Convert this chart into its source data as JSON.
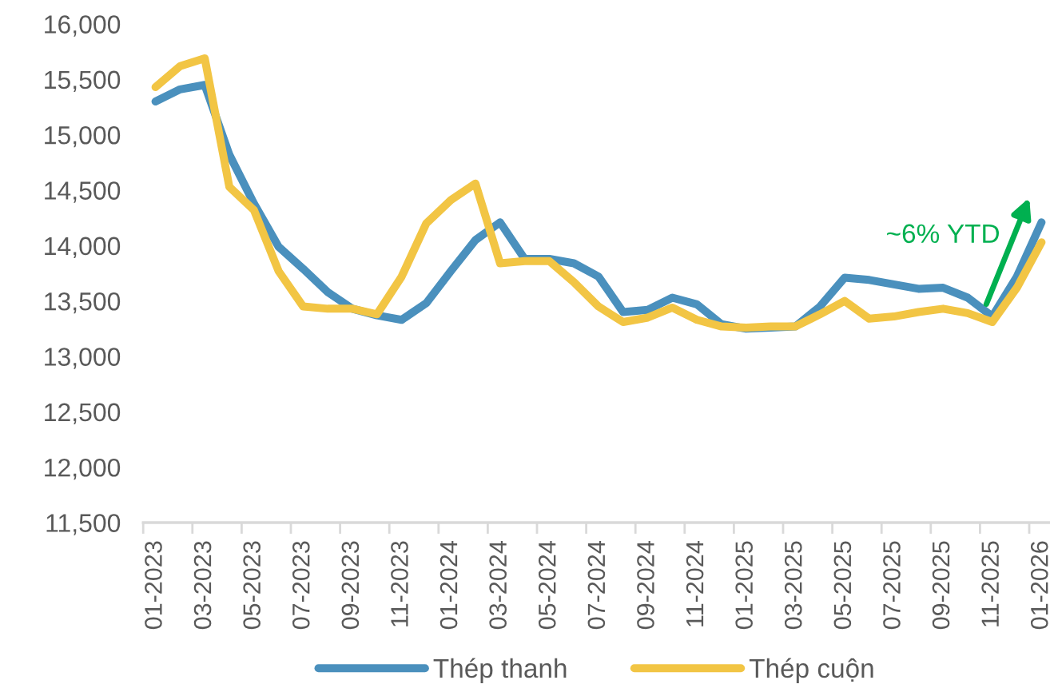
{
  "chart_data": {
    "type": "line",
    "categories": [
      "01-2023",
      null,
      "03-2023",
      null,
      "05-2023",
      null,
      "07-2023",
      null,
      "09-2023",
      null,
      "11-2023",
      null,
      "01-2024",
      null,
      "03-2024",
      null,
      "05-2024",
      null,
      "07-2024",
      null,
      "09-2024",
      null,
      "11-2024",
      null,
      "01-2025",
      null,
      "03-2025",
      null,
      "05-2025",
      null,
      "07-2025",
      null,
      "09-2025",
      null,
      "11-2025",
      null,
      "01-2026"
    ],
    "series": [
      {
        "name": "Thép thanh",
        "color": "#4a90bd",
        "values": [
          15300,
          15410,
          15450,
          14820,
          14380,
          13990,
          13790,
          13580,
          13430,
          13370,
          13330,
          13480,
          13770,
          14050,
          14210,
          13880,
          13880,
          13840,
          13720,
          13400,
          13420,
          13530,
          13470,
          13290,
          13250,
          13260,
          13270,
          13450,
          13710,
          13690,
          13650,
          13610,
          13620,
          13530,
          13360,
          13720,
          14210
        ]
      },
      {
        "name": "Thép cuộn",
        "color": "#f2c544",
        "values": [
          15430,
          15620,
          15690,
          14530,
          14320,
          13770,
          13450,
          13430,
          13430,
          13380,
          13720,
          14200,
          14410,
          14560,
          13840,
          13860,
          13860,
          13670,
          13450,
          13310,
          13350,
          13440,
          13330,
          13270,
          13260,
          13270,
          13270,
          13380,
          13500,
          13340,
          13360,
          13400,
          13430,
          13390,
          13310,
          13620,
          14030
        ]
      }
    ],
    "ylim": [
      11500,
      16000
    ],
    "yticks": [
      {
        "value": 11500,
        "label": "11,500"
      },
      {
        "value": 12000,
        "label": "12,000"
      },
      {
        "value": 12500,
        "label": "12,500"
      },
      {
        "value": 13000,
        "label": "13,000"
      },
      {
        "value": 13500,
        "label": "13,500"
      },
      {
        "value": 14000,
        "label": "14,000"
      },
      {
        "value": 14500,
        "label": "14,500"
      },
      {
        "value": 15000,
        "label": "15,000"
      },
      {
        "value": 15500,
        "label": "15,500"
      },
      {
        "value": 16000,
        "label": "16,000"
      }
    ],
    "annotations": [
      "~6% YTD"
    ],
    "grid": false,
    "legend": "bottom",
    "marker": "none",
    "line_style": "solid"
  }
}
